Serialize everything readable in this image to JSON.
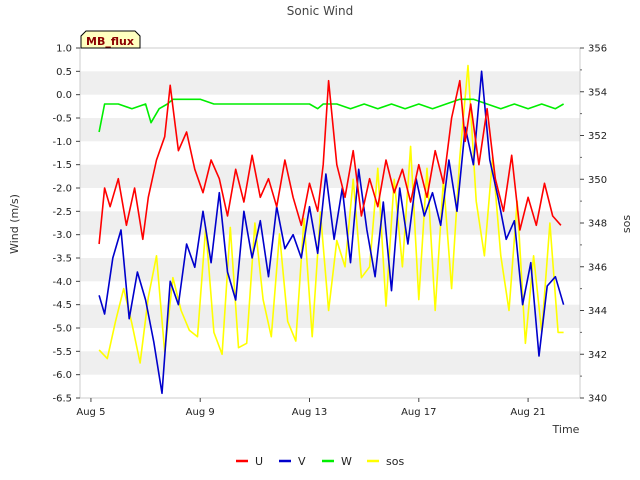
{
  "chart_data": {
    "type": "line",
    "title": "Sonic Wind",
    "badge": "MB_flux",
    "xlabel": "Time",
    "ylabel": "Wind (m/s)",
    "y2label": "sos",
    "x_unit": "day of August",
    "xlim": [
      4.6,
      22.9
    ],
    "ylim": [
      -6.5,
      1.0
    ],
    "y2lim": [
      340,
      356
    ],
    "x_ticks": [
      {
        "label": "Aug 5",
        "value": 5
      },
      {
        "label": "Aug 9",
        "value": 9
      },
      {
        "label": "Aug 13",
        "value": 13
      },
      {
        "label": "Aug 17",
        "value": 17
      },
      {
        "label": "Aug 21",
        "value": 21
      }
    ],
    "y_ticks": [
      1.0,
      0.5,
      0.0,
      -0.5,
      -1.0,
      -1.5,
      -2.0,
      -2.5,
      -3.0,
      -3.5,
      -4.0,
      -4.5,
      -5.0,
      -5.5,
      -6.0,
      -6.5
    ],
    "y_tick_labels": [
      "1.0",
      "0.5",
      "0.0",
      "-0.5",
      "-1.0",
      "-1.5",
      "-2.0",
      "-2.5",
      "-3.0",
      "-3.5",
      "-4.0",
      "-4.5",
      "-5.0",
      "-5.5",
      "-6.0",
      "-6.5"
    ],
    "y2_ticks": [
      340,
      342,
      344,
      346,
      348,
      350,
      352,
      354,
      356
    ],
    "y2_tick_labels": [
      "340",
      "342",
      "344",
      "346",
      "348",
      "350",
      "352",
      "354",
      "356"
    ],
    "grid": "horizontal bands",
    "legend_position": "bottom-center",
    "series": [
      {
        "name": "U",
        "color": "#ff0000",
        "axis": "left",
        "x": [
          5.3,
          5.5,
          5.7,
          6.0,
          6.3,
          6.6,
          6.9,
          7.1,
          7.4,
          7.7,
          7.9,
          8.2,
          8.5,
          8.8,
          9.1,
          9.4,
          9.7,
          10.0,
          10.3,
          10.6,
          10.9,
          11.2,
          11.5,
          11.8,
          12.1,
          12.4,
          12.7,
          13.0,
          13.3,
          13.5,
          13.7,
          14.0,
          14.3,
          14.6,
          14.9,
          15.2,
          15.5,
          15.8,
          16.1,
          16.4,
          16.7,
          17.0,
          17.3,
          17.6,
          17.9,
          18.2,
          18.5,
          18.7,
          18.9,
          19.2,
          19.5,
          19.8,
          20.1,
          20.4,
          20.7,
          21.0,
          21.3,
          21.6,
          21.9,
          22.2
        ],
        "values": [
          -3.2,
          -2.0,
          -2.4,
          -1.8,
          -2.8,
          -2.0,
          -3.1,
          -2.2,
          -1.4,
          -0.9,
          0.2,
          -1.2,
          -0.8,
          -1.6,
          -2.1,
          -1.4,
          -1.8,
          -2.6,
          -1.6,
          -2.3,
          -1.3,
          -2.2,
          -1.8,
          -2.4,
          -1.4,
          -2.2,
          -2.8,
          -1.9,
          -2.5,
          -1.5,
          0.3,
          -1.5,
          -2.2,
          -1.2,
          -2.6,
          -1.8,
          -2.4,
          -1.4,
          -2.1,
          -1.6,
          -2.3,
          -1.5,
          -2.2,
          -1.2,
          -1.9,
          -0.5,
          0.3,
          -1.0,
          -0.2,
          -1.5,
          -0.3,
          -1.8,
          -2.5,
          -1.3,
          -2.9,
          -2.2,
          -2.8,
          -1.9,
          -2.6,
          -2.8
        ]
      },
      {
        "name": "V",
        "color": "#0000cc",
        "axis": "left",
        "x": [
          5.3,
          5.5,
          5.8,
          6.1,
          6.4,
          6.7,
          7.0,
          7.3,
          7.6,
          7.9,
          8.2,
          8.5,
          8.8,
          9.1,
          9.4,
          9.7,
          10.0,
          10.3,
          10.6,
          10.9,
          11.2,
          11.5,
          11.8,
          12.1,
          12.4,
          12.7,
          13.0,
          13.3,
          13.6,
          13.9,
          14.2,
          14.5,
          14.8,
          15.1,
          15.4,
          15.7,
          16.0,
          16.3,
          16.6,
          16.9,
          17.2,
          17.5,
          17.8,
          18.1,
          18.4,
          18.7,
          19.0,
          19.3,
          19.6,
          19.9,
          20.2,
          20.5,
          20.8,
          21.1,
          21.4,
          21.7,
          22.0,
          22.3
        ],
        "values": [
          -4.3,
          -4.7,
          -3.5,
          -2.9,
          -4.8,
          -3.8,
          -4.4,
          -5.3,
          -6.4,
          -4.0,
          -4.5,
          -3.2,
          -3.7,
          -2.5,
          -3.6,
          -2.1,
          -3.8,
          -4.4,
          -2.5,
          -3.5,
          -2.7,
          -3.9,
          -2.4,
          -3.3,
          -3.0,
          -3.5,
          -2.4,
          -3.4,
          -1.7,
          -3.1,
          -2.0,
          -3.6,
          -1.6,
          -2.9,
          -3.9,
          -2.3,
          -4.2,
          -2.0,
          -3.2,
          -1.8,
          -2.6,
          -2.1,
          -2.8,
          -1.4,
          -2.5,
          -0.7,
          -1.5,
          0.5,
          -1.4,
          -2.2,
          -3.1,
          -2.7,
          -4.5,
          -3.6,
          -5.6,
          -4.1,
          -3.9,
          -4.5
        ]
      },
      {
        "name": "W",
        "color": "#00ee00",
        "axis": "left",
        "x": [
          5.3,
          5.5,
          6.0,
          6.5,
          7.0,
          7.2,
          7.5,
          7.8,
          8.0,
          8.5,
          9.0,
          9.5,
          10.0,
          10.5,
          11.0,
          11.5,
          12.0,
          12.5,
          13.0,
          13.3,
          13.5,
          14.0,
          14.5,
          15.0,
          15.5,
          16.0,
          16.5,
          17.0,
          17.5,
          18.0,
          18.5,
          19.0,
          19.5,
          20.0,
          20.5,
          21.0,
          21.5,
          22.0,
          22.3
        ],
        "values": [
          -0.8,
          -0.2,
          -0.2,
          -0.3,
          -0.2,
          -0.6,
          -0.3,
          -0.2,
          -0.1,
          -0.1,
          -0.1,
          -0.2,
          -0.2,
          -0.2,
          -0.2,
          -0.2,
          -0.2,
          -0.2,
          -0.2,
          -0.3,
          -0.2,
          -0.2,
          -0.3,
          -0.2,
          -0.3,
          -0.2,
          -0.3,
          -0.2,
          -0.3,
          -0.2,
          -0.1,
          -0.1,
          -0.2,
          -0.3,
          -0.2,
          -0.3,
          -0.2,
          -0.3,
          -0.2
        ]
      },
      {
        "name": "sos",
        "color": "#ffff00",
        "axis": "right",
        "x": [
          5.3,
          5.6,
          5.9,
          6.2,
          6.5,
          6.8,
          7.1,
          7.4,
          7.7,
          8.0,
          8.3,
          8.6,
          8.9,
          9.2,
          9.5,
          9.8,
          10.1,
          10.4,
          10.7,
          11.0,
          11.3,
          11.6,
          11.9,
          12.2,
          12.5,
          12.8,
          13.1,
          13.4,
          13.7,
          14.0,
          14.3,
          14.6,
          14.9,
          15.2,
          15.5,
          15.8,
          16.1,
          16.4,
          16.7,
          17.0,
          17.3,
          17.6,
          17.9,
          18.2,
          18.5,
          18.8,
          19.1,
          19.4,
          19.7,
          20.0,
          20.3,
          20.6,
          20.9,
          21.2,
          21.5,
          21.8,
          22.1,
          22.3
        ],
        "values": [
          342.2,
          341.8,
          343.5,
          345.0,
          343.4,
          341.6,
          344.6,
          346.5,
          342.1,
          345.5,
          344.0,
          343.1,
          342.8,
          347.8,
          343.0,
          342.0,
          347.8,
          342.3,
          342.5,
          348.0,
          344.5,
          342.8,
          347.5,
          343.5,
          342.6,
          348.2,
          342.8,
          348.5,
          344.0,
          347.2,
          346.0,
          350.0,
          345.5,
          346.0,
          350.5,
          344.2,
          350.0,
          346.0,
          351.5,
          344.5,
          350.5,
          344.0,
          350.0,
          345.0,
          351.0,
          355.2,
          349.0,
          346.5,
          351.0,
          346.5,
          344.0,
          349.0,
          342.5,
          346.5,
          343.0,
          348.0,
          343.0,
          343.0
        ]
      }
    ]
  }
}
